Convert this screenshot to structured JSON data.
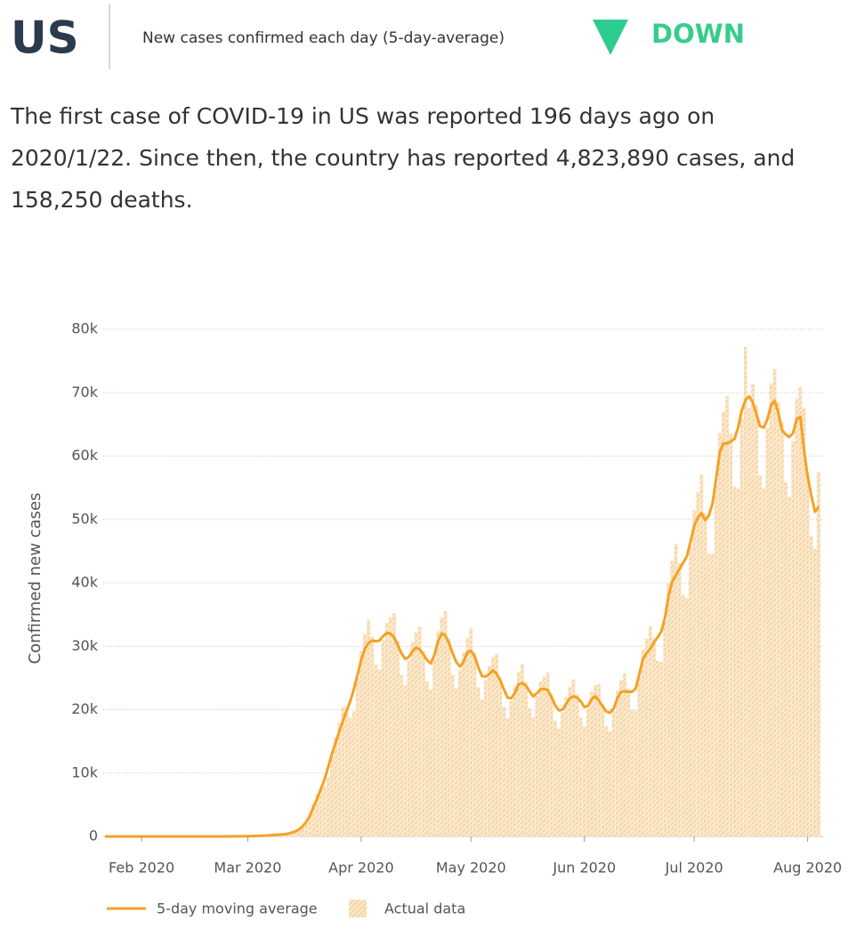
{
  "header": {
    "title": "US",
    "subtitle": "New cases confirmed each day (5-day-average)",
    "trend": "DOWN",
    "summary": [
      "The first case of COVID-19 in US was reported 196 days ago on",
      "2020/1/22. Since then, the country has reported 4,823,890 cases, and",
      "158,250 deaths."
    ]
  },
  "chart_data": {
    "type": "bar-line",
    "ylabel": "Confirmed new cases",
    "x": [
      "2020-01-22",
      "2020-01-23",
      "2020-01-24",
      "2020-01-25",
      "2020-01-26",
      "2020-01-27",
      "2020-01-28",
      "2020-01-29",
      "2020-01-30",
      "2020-01-31",
      "2020-02-01",
      "2020-02-02",
      "2020-02-03",
      "2020-02-04",
      "2020-02-05",
      "2020-02-06",
      "2020-02-07",
      "2020-02-08",
      "2020-02-09",
      "2020-02-10",
      "2020-02-11",
      "2020-02-12",
      "2020-02-13",
      "2020-02-14",
      "2020-02-15",
      "2020-02-16",
      "2020-02-17",
      "2020-02-18",
      "2020-02-19",
      "2020-02-20",
      "2020-02-21",
      "2020-02-22",
      "2020-02-23",
      "2020-02-24",
      "2020-02-25",
      "2020-02-26",
      "2020-02-27",
      "2020-02-28",
      "2020-02-29",
      "2020-03-01",
      "2020-03-02",
      "2020-03-03",
      "2020-03-04",
      "2020-03-05",
      "2020-03-06",
      "2020-03-07",
      "2020-03-08",
      "2020-03-09",
      "2020-03-10",
      "2020-03-11",
      "2020-03-12",
      "2020-03-13",
      "2020-03-14",
      "2020-03-15",
      "2020-03-16",
      "2020-03-17",
      "2020-03-18",
      "2020-03-19",
      "2020-03-20",
      "2020-03-21",
      "2020-03-22",
      "2020-03-23",
      "2020-03-24",
      "2020-03-25",
      "2020-03-26",
      "2020-03-27",
      "2020-03-28",
      "2020-03-29",
      "2020-03-30",
      "2020-03-31",
      "2020-04-01",
      "2020-04-02",
      "2020-04-03",
      "2020-04-04",
      "2020-04-05",
      "2020-04-06",
      "2020-04-07",
      "2020-04-08",
      "2020-04-09",
      "2020-04-10",
      "2020-04-11",
      "2020-04-12",
      "2020-04-13",
      "2020-04-14",
      "2020-04-15",
      "2020-04-16",
      "2020-04-17",
      "2020-04-18",
      "2020-04-19",
      "2020-04-20",
      "2020-04-21",
      "2020-04-22",
      "2020-04-23",
      "2020-04-24",
      "2020-04-25",
      "2020-04-26",
      "2020-04-27",
      "2020-04-28",
      "2020-04-29",
      "2020-04-30",
      "2020-05-01",
      "2020-05-02",
      "2020-05-03",
      "2020-05-04",
      "2020-05-05",
      "2020-05-06",
      "2020-05-07",
      "2020-05-08",
      "2020-05-09",
      "2020-05-10",
      "2020-05-11",
      "2020-05-12",
      "2020-05-13",
      "2020-05-14",
      "2020-05-15",
      "2020-05-16",
      "2020-05-17",
      "2020-05-18",
      "2020-05-19",
      "2020-05-20",
      "2020-05-21",
      "2020-05-22",
      "2020-05-23",
      "2020-05-24",
      "2020-05-25",
      "2020-05-26",
      "2020-05-27",
      "2020-05-28",
      "2020-05-29",
      "2020-05-30",
      "2020-05-31",
      "2020-06-01",
      "2020-06-02",
      "2020-06-03",
      "2020-06-04",
      "2020-06-05",
      "2020-06-06",
      "2020-06-07",
      "2020-06-08",
      "2020-06-09",
      "2020-06-10",
      "2020-06-11",
      "2020-06-12",
      "2020-06-13",
      "2020-06-14",
      "2020-06-15",
      "2020-06-16",
      "2020-06-17",
      "2020-06-18",
      "2020-06-19",
      "2020-06-20",
      "2020-06-21",
      "2020-06-22",
      "2020-06-23",
      "2020-06-24",
      "2020-06-25",
      "2020-06-26",
      "2020-06-27",
      "2020-06-28",
      "2020-06-29",
      "2020-06-30",
      "2020-07-01",
      "2020-07-02",
      "2020-07-03",
      "2020-07-04",
      "2020-07-05",
      "2020-07-06",
      "2020-07-07",
      "2020-07-08",
      "2020-07-09",
      "2020-07-10",
      "2020-07-11",
      "2020-07-12",
      "2020-07-13",
      "2020-07-14",
      "2020-07-15",
      "2020-07-16",
      "2020-07-17",
      "2020-07-18",
      "2020-07-19",
      "2020-07-20",
      "2020-07-21",
      "2020-07-22",
      "2020-07-23",
      "2020-07-24",
      "2020-07-25",
      "2020-07-26",
      "2020-07-27",
      "2020-07-28",
      "2020-07-29",
      "2020-07-30",
      "2020-07-31",
      "2020-08-01",
      "2020-08-02",
      "2020-08-03",
      "2020-08-04"
    ],
    "series": [
      {
        "name": "5-day moving average",
        "type": "line",
        "color": "#f5a123",
        "values": [
          1,
          1,
          1,
          1,
          1,
          1,
          1,
          1,
          1,
          1,
          1,
          1,
          1,
          1,
          1,
          1,
          1,
          1,
          1,
          1,
          1,
          1,
          1,
          1,
          1,
          1,
          1,
          2,
          2,
          3,
          4,
          5,
          7,
          9,
          12,
          15,
          19,
          23,
          29,
          40,
          55,
          70,
          90,
          110,
          140,
          180,
          220,
          270,
          310,
          350,
          450,
          600,
          800,
          1100,
          1600,
          2300,
          3300,
          4700,
          6000,
          7500,
          9000,
          11000,
          13000,
          14800,
          16500,
          18200,
          19800,
          21300,
          23200,
          25500,
          27800,
          29600,
          30500,
          30900,
          30800,
          30900,
          31600,
          32100,
          32000,
          31400,
          30200,
          28900,
          28000,
          28300,
          29200,
          29800,
          29500,
          28700,
          27800,
          27300,
          28600,
          30800,
          32000,
          31700,
          30500,
          28900,
          27500,
          26800,
          27600,
          29000,
          29300,
          28400,
          26700,
          25300,
          25200,
          25600,
          26200,
          25700,
          24600,
          23200,
          21900,
          21800,
          22600,
          24000,
          24200,
          23800,
          22900,
          22100,
          22600,
          23200,
          23300,
          23100,
          22000,
          20700,
          19900,
          20000,
          20900,
          21800,
          22100,
          21900,
          21300,
          20400,
          20600,
          21700,
          22100,
          21400,
          20500,
          19700,
          19500,
          20200,
          21800,
          22800,
          22900,
          22800,
          22800,
          23300,
          25600,
          28000,
          28900,
          29600,
          30600,
          31400,
          32300,
          34500,
          38000,
          40200,
          41200,
          42200,
          43200,
          44200,
          46500,
          49000,
          50300,
          51000,
          49900,
          50600,
          52500,
          56500,
          60600,
          62000,
          62000,
          62300,
          62700,
          64500,
          67200,
          68800,
          69400,
          68500,
          66600,
          64700,
          64500,
          65800,
          68000,
          68700,
          66800,
          64100,
          63400,
          63000,
          63600,
          65800,
          66200,
          61000,
          56800,
          53800,
          51200,
          52000
        ]
      },
      {
        "name": "Actual data",
        "type": "bar",
        "color": "#f7d6a6",
        "values": [
          1,
          0,
          1,
          0,
          3,
          0,
          0,
          1,
          0,
          3,
          1,
          0,
          1,
          1,
          0,
          1,
          1,
          0,
          0,
          1,
          1,
          0,
          0,
          1,
          1,
          2,
          1,
          2,
          3,
          3,
          4,
          5,
          8,
          10,
          12,
          15,
          18,
          22,
          30,
          35,
          70,
          60,
          110,
          120,
          170,
          200,
          250,
          280,
          330,
          370,
          490,
          670,
          820,
          970,
          1360,
          2250,
          3470,
          5080,
          6720,
          7650,
          7920,
          9350,
          12740,
          15540,
          17820,
          20380,
          20200,
          18740,
          19720,
          24990,
          29190,
          31970,
          34160,
          31520,
          27100,
          26270,
          30970,
          33710,
          34560,
          35170,
          30800,
          25430,
          23800,
          27730,
          30660,
          32180,
          33040,
          29270,
          24460,
          23210,
          28030,
          32340,
          34560,
          35500,
          31110,
          25430,
          23380,
          26260,
          28980,
          31320,
          32820,
          28970,
          23500,
          21510,
          24700,
          26880,
          28300,
          28780,
          25090,
          20420,
          18620,
          21360,
          23730,
          25920,
          27100,
          24280,
          20150,
          18790,
          22150,
          24360,
          25160,
          25870,
          22440,
          18220,
          16920,
          19600,
          21950,
          23540,
          24750,
          22340,
          18740,
          17340,
          20190,
          22790,
          23870,
          23970,
          20910,
          17340,
          16580,
          19800,
          22890,
          24620,
          25650,
          23260,
          20060,
          19810,
          25090,
          29400,
          31210,
          33150,
          31210,
          27630,
          27460,
          33810,
          39900,
          43420,
          46140,
          43040,
          38020,
          37570,
          45570,
          51450,
          54320,
          57120,
          50900,
          44530,
          44630,
          55370,
          63630,
          66960,
          69440,
          63550,
          55180,
          54830,
          65860,
          77200,
          67500,
          71300,
          67930,
          56940,
          54830,
          64480,
          71400,
          73700,
          68500,
          65380,
          55790,
          53550,
          62330,
          69090,
          70800,
          67500,
          57200,
          47340,
          45300,
          57500
        ]
      }
    ],
    "xlim": [
      "2020-01-22",
      "2020-08-04"
    ],
    "xticks": [
      {
        "value": "2020-02-01",
        "label": "Feb 2020"
      },
      {
        "value": "2020-03-01",
        "label": "Mar 2020"
      },
      {
        "value": "2020-04-01",
        "label": "Apr 2020"
      },
      {
        "value": "2020-05-01",
        "label": "May 2020"
      },
      {
        "value": "2020-06-01",
        "label": "Jun 2020"
      },
      {
        "value": "2020-07-01",
        "label": "Jul 2020"
      },
      {
        "value": "2020-08-01",
        "label": "Aug 2020"
      }
    ],
    "ylim": [
      0,
      80000
    ],
    "yticks": [
      0,
      {
        "value": 10000,
        "label": "10k"
      },
      {
        "value": 20000,
        "label": "20k"
      },
      {
        "value": 30000,
        "label": "30k"
      },
      {
        "value": 40000,
        "label": "40k"
      },
      {
        "value": 50000,
        "label": "50k"
      },
      {
        "value": 60000,
        "label": "60k"
      },
      {
        "value": 70000,
        "label": "70k"
      },
      {
        "value": 80000,
        "label": "80k"
      }
    ],
    "grid": true,
    "legend": "bottom"
  }
}
